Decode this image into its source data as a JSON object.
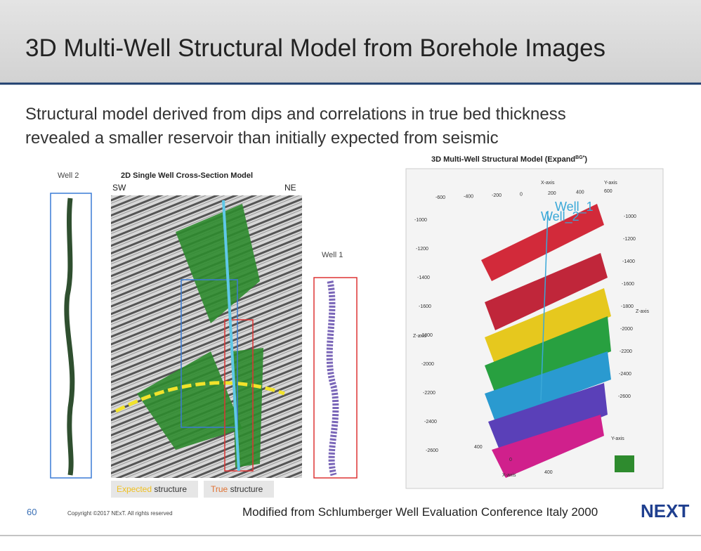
{
  "header": {
    "title": "3D Multi-Well Structural Model from Borehole Images"
  },
  "body": {
    "lines": [
      "Structural model derived from dips and correlations in true bed thickness",
      "revealed  a smaller reservoir than initially expected from seismic"
    ]
  },
  "figures": {
    "well_2": {
      "label": "Well 2"
    },
    "cross_section": {
      "title": "2D Single Well Cross-Section Model",
      "left": "SW",
      "right": "NE"
    },
    "well_1": {
      "label": "Well 1"
    },
    "legend": [
      {
        "highlight": "Expected",
        "text": "structure"
      },
      {
        "highlight": "True",
        "text": "structure"
      }
    ],
    "model_3d": {
      "title": "3D Multi-Well Structural Model (Expand",
      "superscript": "BG*",
      "title_end": ")",
      "well_labels": [
        "Well_1",
        "Well_2"
      ],
      "x_label": "X-axis",
      "y_label": "Y-axis",
      "z_label": "Z-axis",
      "top_ticks": [
        "-600",
        "-400",
        "-200",
        "0",
        "200",
        "400",
        "600"
      ],
      "left_ticks": [
        "-1000",
        "-1200",
        "-1400",
        "-1600",
        "-1800",
        "-2000",
        "-2200",
        "-2400",
        "-2600"
      ],
      "right_ticks": [
        "-1000",
        "-1200",
        "-1400",
        "-1600",
        "-1800",
        "-2000",
        "-2200",
        "-2400",
        "-2600"
      ],
      "bottom_ticks": [
        "400",
        "0",
        "400"
      ]
    }
  },
  "footer": {
    "page": "60",
    "copyright": "Copyright ©2017  NExT. All rights reserved",
    "source": "Modified from Schlumberger Well Evaluation Conference Italy 2000",
    "logo": "NEXT"
  }
}
